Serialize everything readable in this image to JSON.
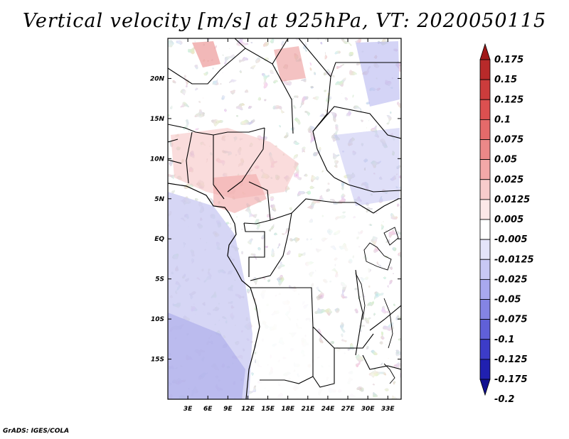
{
  "chart_data": {
    "type": "heatmap",
    "title": "Vertical velocity [m/s] at 925hPa, VT: 2020050115",
    "variable": "Vertical velocity",
    "units": "m/s",
    "level": "925hPa",
    "valid_time": "2020050115",
    "lon_range": [
      0,
      35
    ],
    "lat_range": [
      -20,
      25
    ],
    "x_ticks": [
      {
        "value": 3,
        "label": "3E"
      },
      {
        "value": 6,
        "label": "6E"
      },
      {
        "value": 9,
        "label": "9E"
      },
      {
        "value": 12,
        "label": "12E"
      },
      {
        "value": 15,
        "label": "15E"
      },
      {
        "value": 18,
        "label": "18E"
      },
      {
        "value": 21,
        "label": "21E"
      },
      {
        "value": 24,
        "label": "24E"
      },
      {
        "value": 27,
        "label": "27E"
      },
      {
        "value": 30,
        "label": "30E"
      },
      {
        "value": 33,
        "label": "33E"
      }
    ],
    "y_ticks": [
      {
        "value": 20,
        "label": "20N"
      },
      {
        "value": 15,
        "label": "15N"
      },
      {
        "value": 10,
        "label": "10N"
      },
      {
        "value": 5,
        "label": "5N"
      },
      {
        "value": 0,
        "label": "EQ"
      },
      {
        "value": -5,
        "label": "5S"
      },
      {
        "value": -10,
        "label": "10S"
      },
      {
        "value": -15,
        "label": "15S"
      }
    ],
    "colorbar": {
      "levels": [
        "0.175",
        "0.15",
        "0.125",
        "0.1",
        "0.075",
        "0.05",
        "0.025",
        "0.0125",
        "0.005",
        "-0.005",
        "-0.0125",
        "-0.025",
        "-0.05",
        "-0.075",
        "-0.1",
        "-0.125",
        "-0.175",
        "-0.2"
      ],
      "colors": [
        "#a01818",
        "#b82a2a",
        "#cc3c3c",
        "#dc5050",
        "#e46a6a",
        "#ec8888",
        "#f2a8a8",
        "#f8cccc",
        "#fce8e8",
        "#ffffff",
        "#e4e4fa",
        "#c8c8f4",
        "#a8a8ee",
        "#8484e4",
        "#6060d8",
        "#3c3cc8",
        "#2020b0",
        "#101090"
      ]
    }
  },
  "footer": "GrADS: IGES/COLA"
}
